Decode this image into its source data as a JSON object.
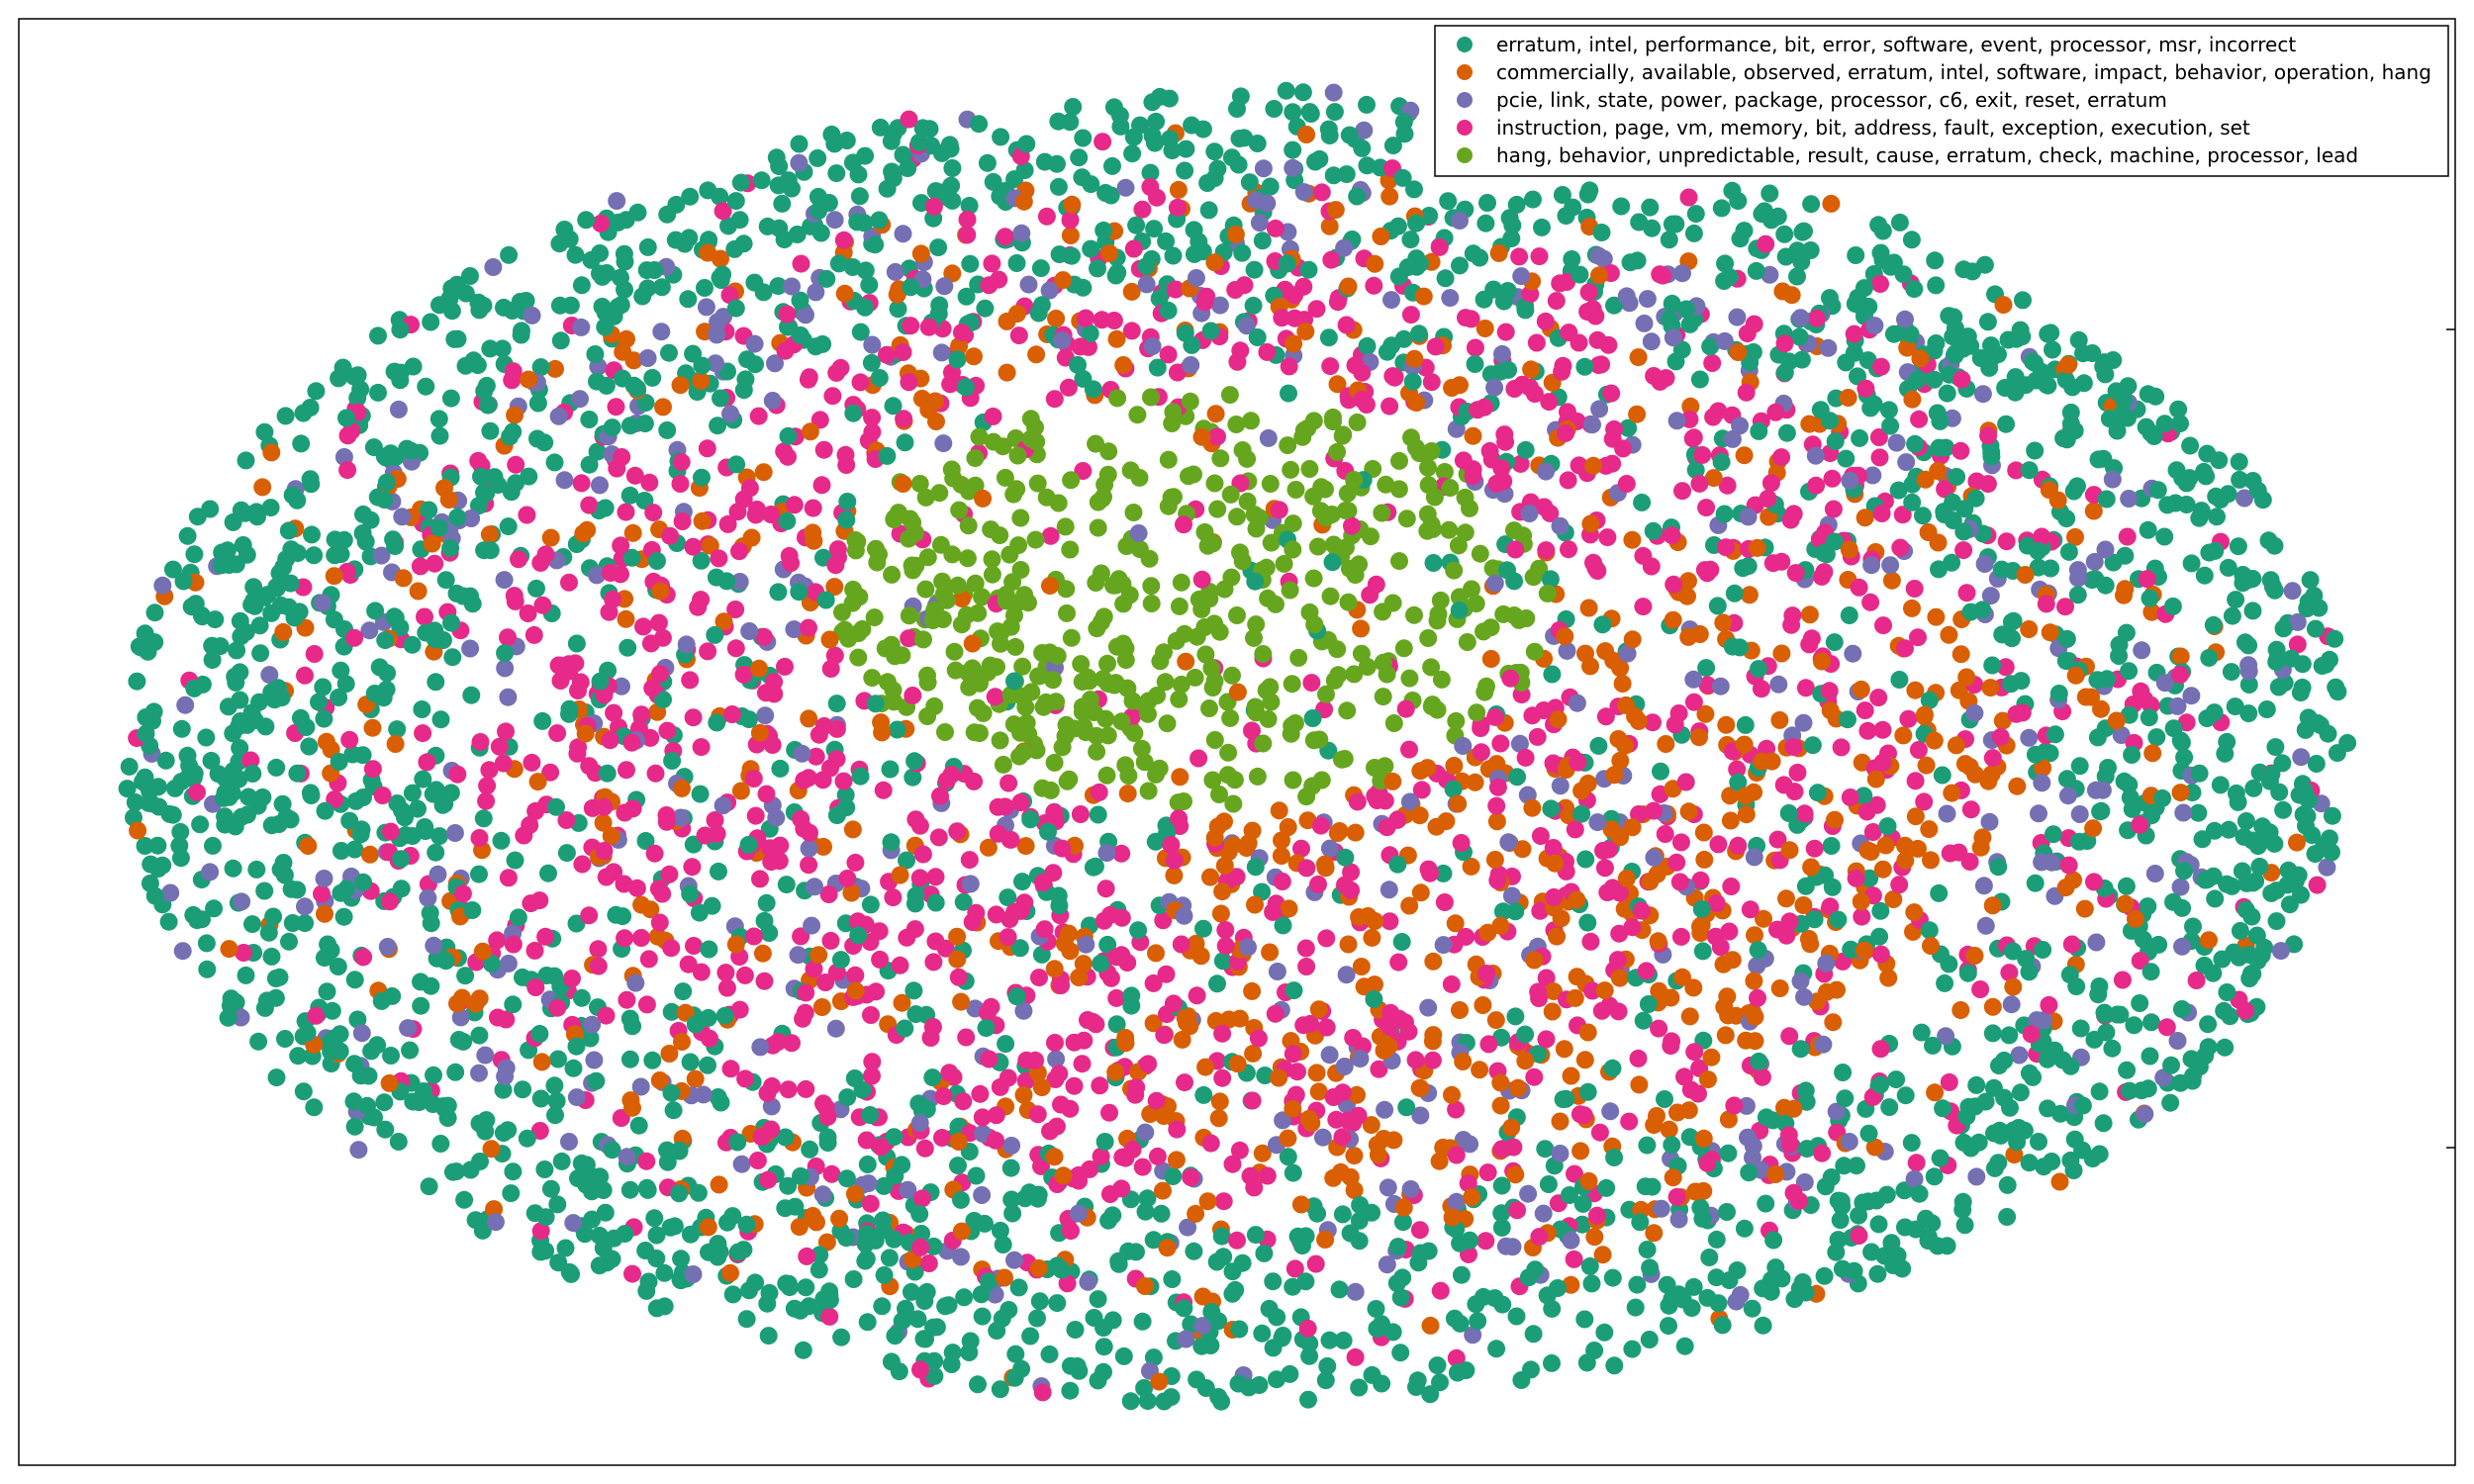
{
  "chart_data": {
    "type": "scatter",
    "title": "",
    "xlabel": "",
    "ylabel": "",
    "grid": false,
    "legend_position": "top-right",
    "axis_ticks": "tick marks only, no tick labels",
    "xlim": [
      -1,
      1
    ],
    "ylim": [
      -1,
      1
    ],
    "point_layout": "topic clusters arranged in an elliptical embedding; green outer ring, mixed orange/pink/purple interior, olive core cluster",
    "series": [
      {
        "name": "erratum, intel, performance, bit, error, software, event, processor, msr, incorrect",
        "color": "#1b9e77",
        "points": [
          [
            -0.98,
            0.02
          ],
          [
            -0.95,
            -0.15
          ],
          [
            -0.93,
            0.2
          ],
          [
            -0.88,
            0.35
          ],
          [
            -0.86,
            -0.35
          ],
          [
            -0.8,
            0.5
          ],
          [
            -0.78,
            -0.5
          ],
          [
            -0.7,
            0.62
          ],
          [
            -0.68,
            -0.63
          ],
          [
            -0.58,
            0.74
          ],
          [
            -0.55,
            -0.74
          ],
          [
            -0.45,
            0.83
          ],
          [
            -0.42,
            -0.83
          ],
          [
            -0.3,
            0.9
          ],
          [
            -0.28,
            -0.9
          ],
          [
            -0.15,
            0.95
          ],
          [
            -0.12,
            -0.95
          ],
          [
            0.0,
            0.97
          ],
          [
            0.02,
            -0.97
          ],
          [
            0.15,
            0.95
          ],
          [
            0.18,
            -0.94
          ],
          [
            0.3,
            0.9
          ],
          [
            0.33,
            -0.89
          ],
          [
            0.45,
            0.83
          ],
          [
            0.48,
            -0.81
          ],
          [
            0.58,
            0.74
          ],
          [
            0.6,
            -0.73
          ],
          [
            0.7,
            0.62
          ],
          [
            0.72,
            -0.6
          ],
          [
            0.8,
            0.5
          ],
          [
            0.82,
            -0.47
          ],
          [
            0.88,
            0.35
          ],
          [
            0.9,
            -0.32
          ],
          [
            0.94,
            0.18
          ],
          [
            0.96,
            -0.12
          ],
          [
            0.98,
            0.02
          ],
          [
            -0.2,
            0.1
          ],
          [
            0.25,
            -0.25
          ],
          [
            -0.6,
            0.05
          ],
          [
            0.55,
            0.2
          ]
        ]
      },
      {
        "name": "commercially, available, observed, erratum, intel, software, impact, behavior, operation, hang",
        "color": "#d95f02",
        "points": [
          [
            0.1,
            -0.3
          ],
          [
            0.2,
            -0.4
          ],
          [
            0.05,
            -0.55
          ],
          [
            0.3,
            -0.5
          ],
          [
            0.25,
            -0.65
          ],
          [
            0.4,
            -0.35
          ],
          [
            0.15,
            -0.7
          ],
          [
            0.35,
            -0.2
          ],
          [
            -0.1,
            -0.45
          ],
          [
            0.5,
            -0.55
          ],
          [
            -0.3,
            0.4
          ],
          [
            0.2,
            0.55
          ],
          [
            -0.45,
            -0.3
          ],
          [
            0.55,
            0.3
          ],
          [
            0.6,
            -0.15
          ],
          [
            -0.25,
            -0.6
          ],
          [
            0.1,
            0.7
          ],
          [
            0.45,
            0.6
          ],
          [
            -0.5,
            0.55
          ],
          [
            0.65,
            -0.4
          ]
        ]
      },
      {
        "name": "pcie, link, state, power, package, processor, c6, exit, reset, erratum",
        "color": "#7570b3",
        "points": [
          [
            -0.1,
            0.85
          ],
          [
            0.05,
            0.88
          ],
          [
            0.2,
            0.8
          ],
          [
            -0.3,
            0.78
          ],
          [
            0.4,
            0.72
          ],
          [
            0.6,
            0.65
          ],
          [
            -0.75,
            0.35
          ],
          [
            -0.82,
            -0.2
          ],
          [
            0.78,
            0.3
          ],
          [
            0.85,
            -0.1
          ],
          [
            -0.6,
            -0.6
          ],
          [
            0.55,
            -0.6
          ],
          [
            -0.2,
            -0.78
          ],
          [
            0.3,
            -0.75
          ],
          [
            -0.4,
            0.7
          ]
        ]
      },
      {
        "name": "instruction, page, vm, memory, bit, address, fault, exception, execution, set",
        "color": "#e7298a",
        "points": [
          [
            -0.55,
            -0.1
          ],
          [
            -0.45,
            0.15
          ],
          [
            -0.35,
            -0.2
          ],
          [
            -0.6,
            0.25
          ],
          [
            -0.4,
            -0.45
          ],
          [
            -0.25,
            -0.35
          ],
          [
            -0.65,
            -0.3
          ],
          [
            -0.15,
            -0.55
          ],
          [
            -0.5,
            0.4
          ],
          [
            0.5,
            0.0
          ],
          [
            0.6,
            0.15
          ],
          [
            0.45,
            -0.15
          ],
          [
            0.7,
            0.05
          ],
          [
            0.35,
            0.4
          ],
          [
            0.0,
            -0.75
          ],
          [
            -0.05,
            -0.3
          ],
          [
            0.25,
            0.3
          ],
          [
            -0.3,
            0.6
          ],
          [
            0.65,
            0.45
          ],
          [
            0.75,
            -0.3
          ]
        ]
      },
      {
        "name": "hang, behavior, unpredictable, result, cause, erratum, check, machine, processor, lead",
        "color": "#66a61e",
        "points": [
          [
            -0.05,
            0.25
          ],
          [
            0.0,
            0.2
          ],
          [
            0.05,
            0.3
          ],
          [
            -0.1,
            0.15
          ],
          [
            0.1,
            0.22
          ],
          [
            -0.15,
            0.3
          ],
          [
            0.0,
            0.35
          ],
          [
            -0.08,
            0.05
          ],
          [
            0.08,
            0.08
          ],
          [
            -0.2,
            0.2
          ],
          [
            0.15,
            0.15
          ],
          [
            -0.02,
            0.1
          ],
          [
            0.03,
            0.4
          ],
          [
            -0.12,
            0.38
          ],
          [
            0.12,
            0.32
          ]
        ]
      }
    ]
  }
}
